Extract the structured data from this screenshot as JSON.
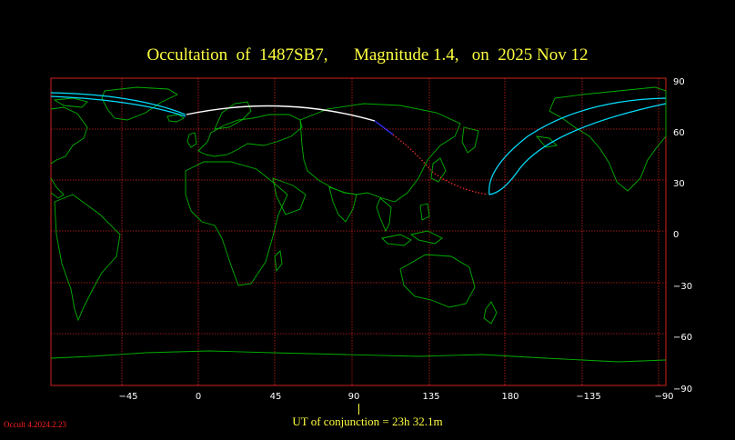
{
  "title": "Occultation  of  1487SB7,      Magnitude 1.4,   on  2025 Nov 12",
  "footer": {
    "conjunction": "UT of conjunction = 23h 32.1m",
    "version": "Occult 4.2024.2.23"
  },
  "map": {
    "projection": "equirectangular, centred on 45E",
    "lon_range": [
      -120,
      210
    ],
    "lat_range": [
      -90,
      90
    ],
    "lon_tick_labels": [
      "−45",
      "0",
      "45",
      "90",
      "135",
      "180",
      "−135",
      "−90"
    ],
    "lat_tick_labels": [
      "90",
      "60",
      "30",
      "0",
      "−30",
      "−60",
      "−90"
    ],
    "colors": {
      "background": "#000000",
      "coastline": "#00b000",
      "grid": "#d02020",
      "title": "#ffff40",
      "path_visible": "#ffffff",
      "path_sunlit": "#3030ff",
      "path_daylight": "#ff3030",
      "limit_lines": "#00e0ff"
    }
  }
}
